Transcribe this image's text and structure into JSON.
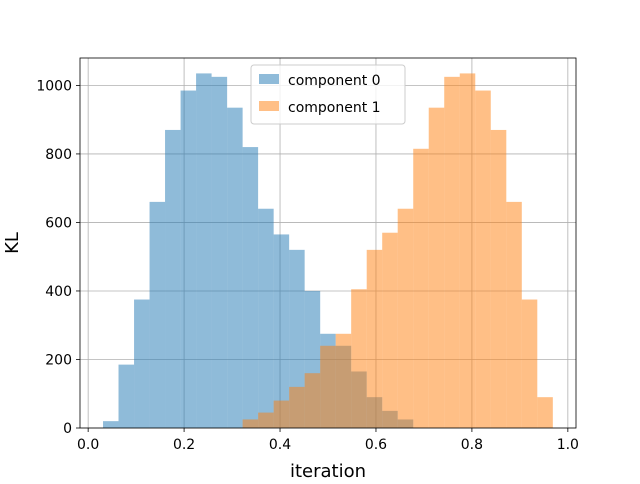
{
  "chart_data": {
    "type": "bar",
    "title": "",
    "xlabel": "iteration",
    "ylabel": "KL",
    "xlim": [
      -0.017,
      1.017
    ],
    "ylim": [
      0,
      1080
    ],
    "grid": true,
    "legend_position": "top-center",
    "x_ticks": [
      {
        "value": 0.0,
        "label": "0.0"
      },
      {
        "value": 0.2,
        "label": "0.2"
      },
      {
        "value": 0.4,
        "label": "0.4"
      },
      {
        "value": 0.6,
        "label": "0.6"
      },
      {
        "value": 0.8,
        "label": "0.8"
      },
      {
        "value": 1.0,
        "label": "1.0"
      }
    ],
    "y_ticks": [
      {
        "value": 0,
        "label": "0"
      },
      {
        "value": 200,
        "label": "200"
      },
      {
        "value": 400,
        "label": "400"
      },
      {
        "value": 600,
        "label": "600"
      },
      {
        "value": 800,
        "label": "800"
      },
      {
        "value": 1000,
        "label": "1000"
      }
    ],
    "series": [
      {
        "name": "component 0",
        "color": "#1f77b4",
        "opacity": 0.5,
        "bin_edges": [
          0.031,
          0.0633,
          0.0957,
          0.128,
          0.1603,
          0.1927,
          0.225,
          0.2573,
          0.2897,
          0.322,
          0.3543,
          0.3867,
          0.419,
          0.4513,
          0.4837,
          0.516,
          0.5483,
          0.5807,
          0.613,
          0.6453,
          0.6777
        ],
        "counts": [
          20,
          185,
          375,
          660,
          870,
          985,
          1035,
          1025,
          935,
          820,
          640,
          565,
          520,
          400,
          275,
          240,
          165,
          90,
          50,
          25
        ]
      },
      {
        "name": "component 1",
        "color": "#ff7f0e",
        "opacity": 0.5,
        "bin_edges": [
          0.322,
          0.3543,
          0.3867,
          0.419,
          0.4513,
          0.4837,
          0.516,
          0.5483,
          0.5807,
          0.613,
          0.6453,
          0.6777,
          0.71,
          0.7423,
          0.7747,
          0.807,
          0.8393,
          0.8717,
          0.904,
          0.9363,
          0.9687
        ],
        "counts": [
          25,
          45,
          80,
          120,
          160,
          240,
          275,
          405,
          520,
          570,
          640,
          815,
          935,
          1025,
          1035,
          985,
          870,
          660,
          375,
          90
        ]
      }
    ]
  }
}
